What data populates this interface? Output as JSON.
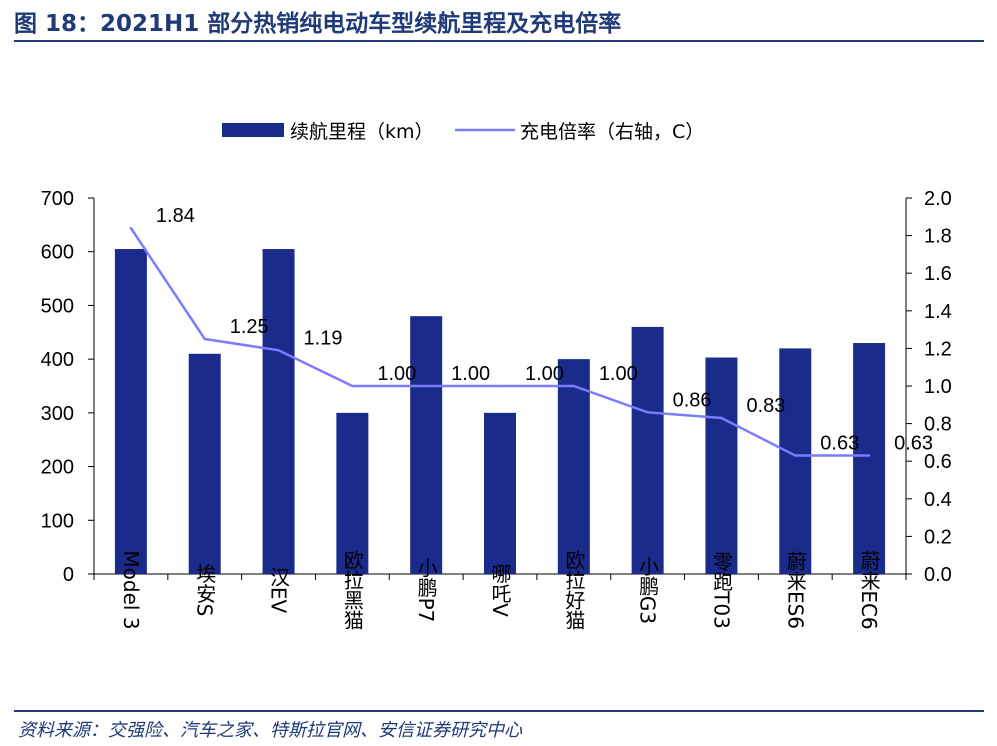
{
  "title": "图 18：2021H1 部分热销纯电动车型续航里程及充电倍率",
  "source": "资料来源：交强险、汽车之家、特斯拉官网、安信证券研究中心",
  "colors": {
    "bar": "#1a2b8c",
    "line": "#7b7bff",
    "title": "#1f3a78"
  },
  "chart_data": {
    "type": "bar",
    "categories": [
      "Model 3",
      "埃安S",
      "汉EV",
      "欧拉黑猫",
      "小鹏P7",
      "哪吒V",
      "欧拉好猫",
      "小鹏G3",
      "零跑T03",
      "蔚来ES6",
      "蔚来EC6"
    ],
    "series": [
      {
        "name": "续航里程（km）",
        "type": "bar",
        "axis": "left",
        "values": [
          605,
          410,
          605,
          300,
          480,
          300,
          400,
          460,
          403,
          420,
          430
        ]
      },
      {
        "name": "充电倍率（右轴，C）",
        "type": "line",
        "axis": "right",
        "values": [
          1.84,
          1.25,
          1.19,
          1.0,
          1.0,
          1.0,
          1.0,
          0.86,
          0.83,
          0.63,
          0.63
        ],
        "labels": [
          "1.84",
          "1.25",
          "1.19",
          "1.00",
          "1.00",
          "1.00",
          "1.00",
          "0.86",
          "0.83",
          "0.63",
          "0.63"
        ]
      }
    ],
    "ylim": [
      0,
      700
    ],
    "yticks": [
      "0",
      "100",
      "200",
      "300",
      "400",
      "500",
      "600",
      "700"
    ],
    "y2lim": [
      0,
      2.0
    ],
    "y2ticks": [
      "0.0",
      "0.2",
      "0.4",
      "0.6",
      "0.8",
      "1.0",
      "1.2",
      "1.4",
      "1.6",
      "1.8",
      "2.0"
    ],
    "legend_position": "top-center",
    "grid": false
  }
}
